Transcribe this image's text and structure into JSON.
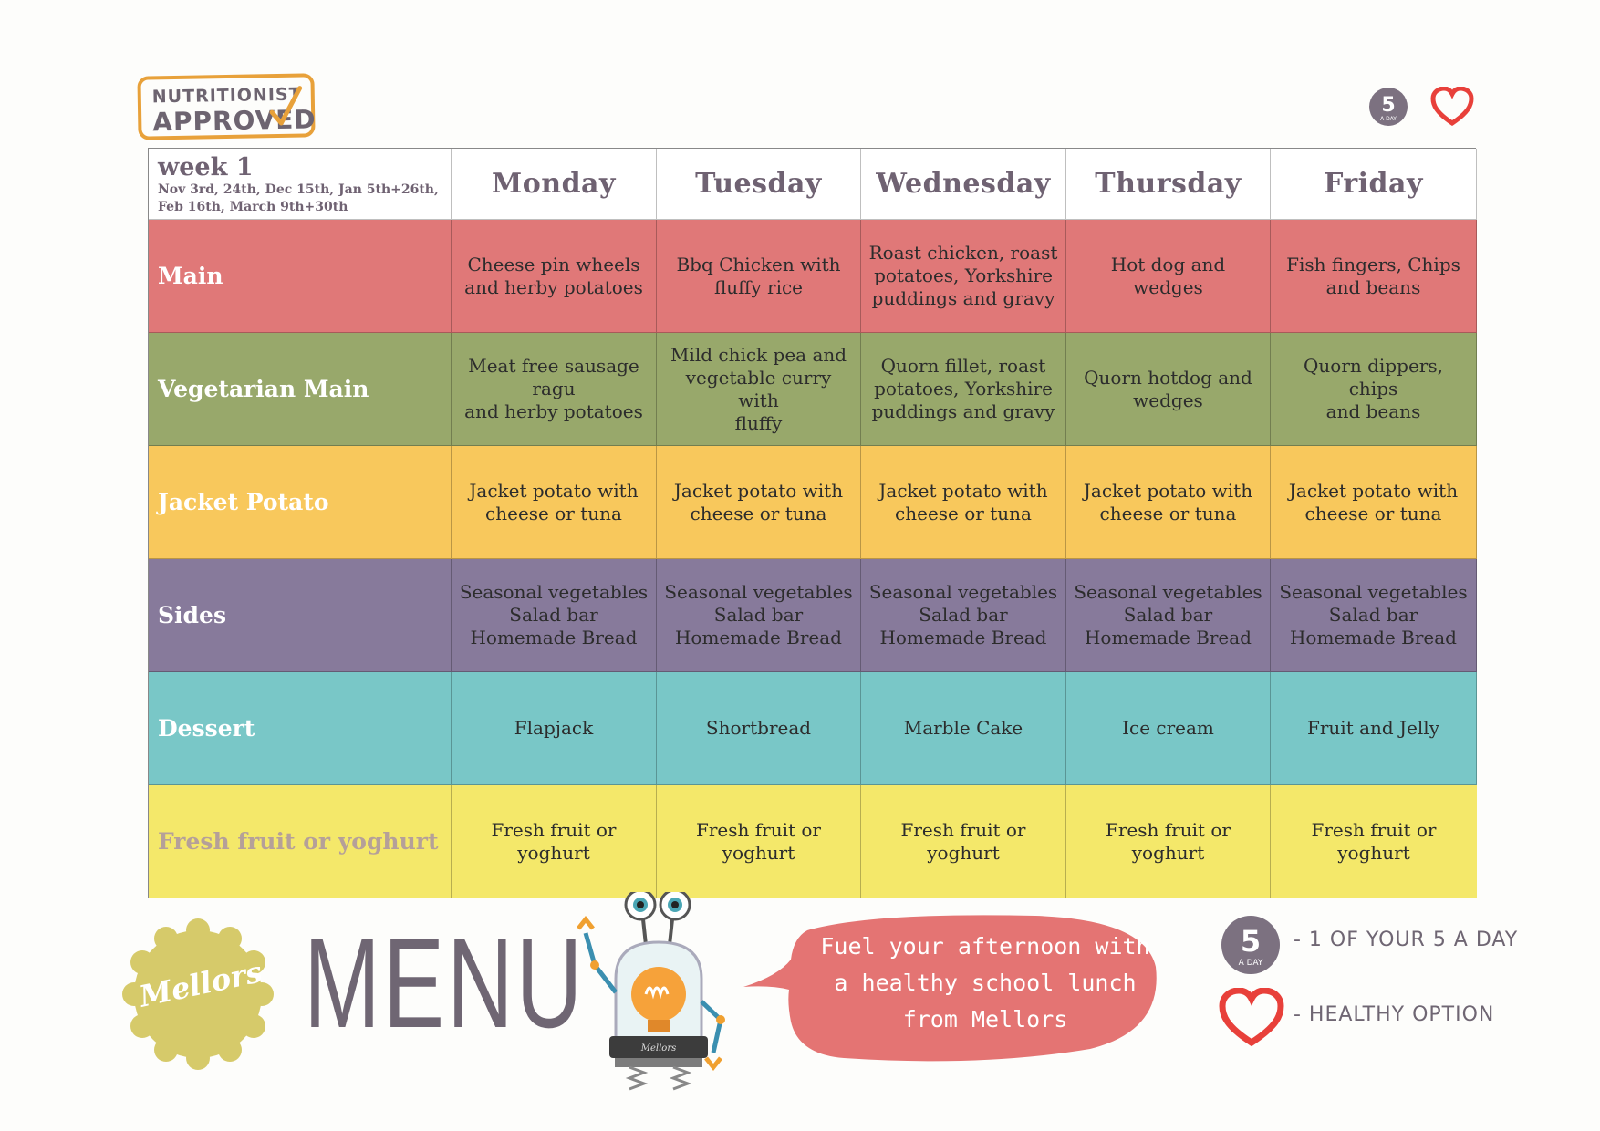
{
  "badge": {
    "line1": "NUTRITIONIST",
    "line2": "APPROVED"
  },
  "five_a_day_badge": {
    "number": "5",
    "sub": "A DAY"
  },
  "table": {
    "week_title": "week 1",
    "week_dates": "Nov 3rd, 24th, Dec 15th, Jan 5th+26th, Feb 16th, March 9th+30th",
    "days": [
      "Monday",
      "Tuesday",
      "Wednesday",
      "Thursday",
      "Friday"
    ],
    "rows": [
      {
        "label": "Main",
        "cells": [
          "Cheese pin wheels\nand herby potatoes",
          "Bbq Chicken with\nfluffy rice",
          "Roast chicken, roast\npotatoes, Yorkshire\npuddings and gravy",
          "Hot dog and wedges",
          "Fish fingers, Chips\nand beans"
        ]
      },
      {
        "label": "Vegetarian Main",
        "cells": [
          "Meat free sausage\nragu\nand herby potatoes",
          "Mild chick pea and\nvegetable curry with\nfluffy",
          "Quorn fillet, roast\npotatoes, Yorkshire\npuddings and gravy",
          "Quorn hotdog and\nwedges",
          "Quorn dippers, chips\nand beans"
        ]
      },
      {
        "label": "Jacket Potato",
        "cells": [
          "Jacket potato with\ncheese or tuna",
          "Jacket potato with\ncheese or tuna",
          "Jacket potato with\ncheese or tuna",
          "Jacket potato with\ncheese or tuna",
          "Jacket potato with\ncheese or tuna"
        ]
      },
      {
        "label": "Sides",
        "cells": [
          "Seasonal vegetables\nSalad bar\nHomemade Bread",
          "Seasonal vegetables\nSalad bar\nHomemade Bread",
          "Seasonal vegetables\nSalad bar\nHomemade Bread",
          "Seasonal vegetables\nSalad bar\nHomemade Bread",
          "Seasonal vegetables\nSalad bar\nHomemade Bread"
        ]
      },
      {
        "label": "Dessert",
        "cells": [
          "Flapjack",
          "Shortbread",
          "Marble Cake",
          "Ice cream",
          "Fruit and Jelly"
        ]
      },
      {
        "label": "Fresh fruit or yoghurt",
        "cells": [
          "Fresh fruit or yoghurt",
          "Fresh fruit or yoghurt",
          "Fresh fruit or yoghurt",
          "Fresh fruit or yoghurt",
          "Fresh fruit or yoghurt"
        ]
      }
    ]
  },
  "footer": {
    "brand": "Mellors",
    "menu_word": "MENU",
    "bubble_line1": "Fuel your afternoon with",
    "bubble_line2": "a healthy school lunch",
    "bubble_line3": "from Mellors",
    "legend_five": "- 1 OF YOUR 5 A DAY",
    "legend_heart": "- HEALTHY OPTION",
    "robot_brand": "Mellors"
  },
  "colors": {
    "main": "#e07878",
    "vegetarian": "#98a86b",
    "jacket": "#f8c85c",
    "sides": "#877a9b",
    "dessert": "#79c7c7",
    "fruit": "#f4e86a",
    "heart": "#e8403a",
    "accent_orange": "#e8a13a"
  },
  "icons": [
    "check-icon",
    "five-a-day-icon",
    "heart-icon",
    "robot-lightbulb-icon",
    "speech-bubble-icon",
    "mellors-seal-icon"
  ]
}
